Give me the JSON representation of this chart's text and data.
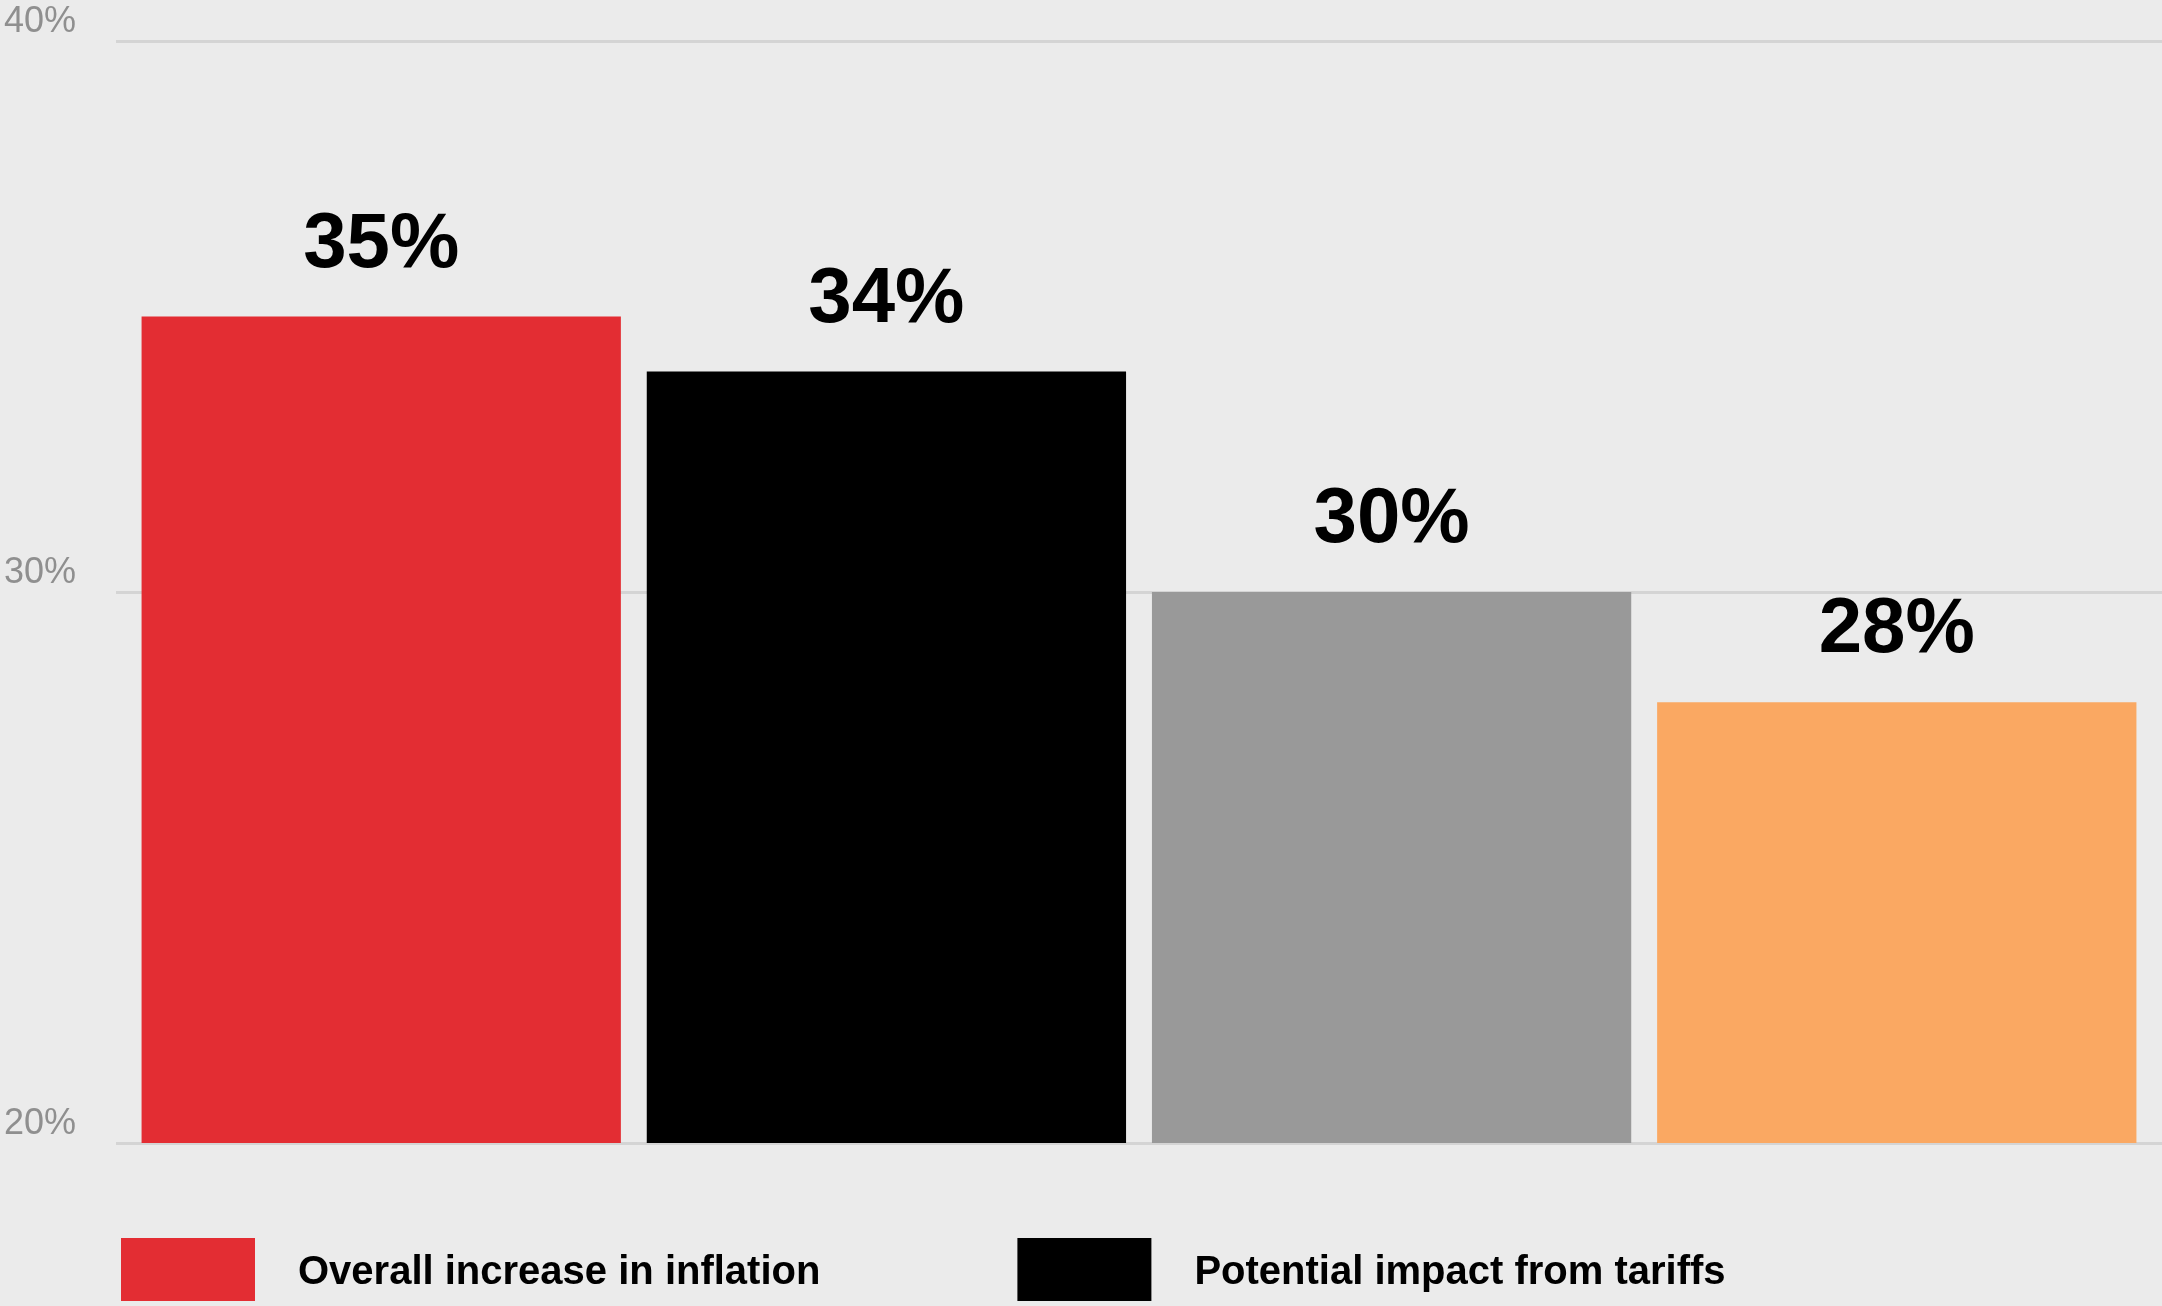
{
  "chart_data": {
    "type": "bar",
    "categories": [
      null
    ],
    "series": [
      {
        "name": "Overall increase in inflation",
        "color": "#e32d33",
        "values": [
          35
        ],
        "value_labels": [
          "35%"
        ]
      },
      {
        "name": "Potential impact from tariffs",
        "color": "#000000",
        "values": [
          34
        ],
        "value_labels": [
          "34%"
        ]
      },
      {
        "color": "#999999",
        "values": [
          30
        ],
        "value_labels": [
          "30%"
        ]
      },
      {
        "color": "#faa862",
        "values": [
          28
        ],
        "value_labels": [
          "28%"
        ]
      }
    ],
    "ylim": [
      20,
      40
    ],
    "yticks": [
      {
        "value": 20,
        "label": "20%"
      },
      {
        "value": 30,
        "label": "30%"
      },
      {
        "value": 40,
        "label": "40%"
      }
    ],
    "grid": "y",
    "legend": "bottom left"
  }
}
